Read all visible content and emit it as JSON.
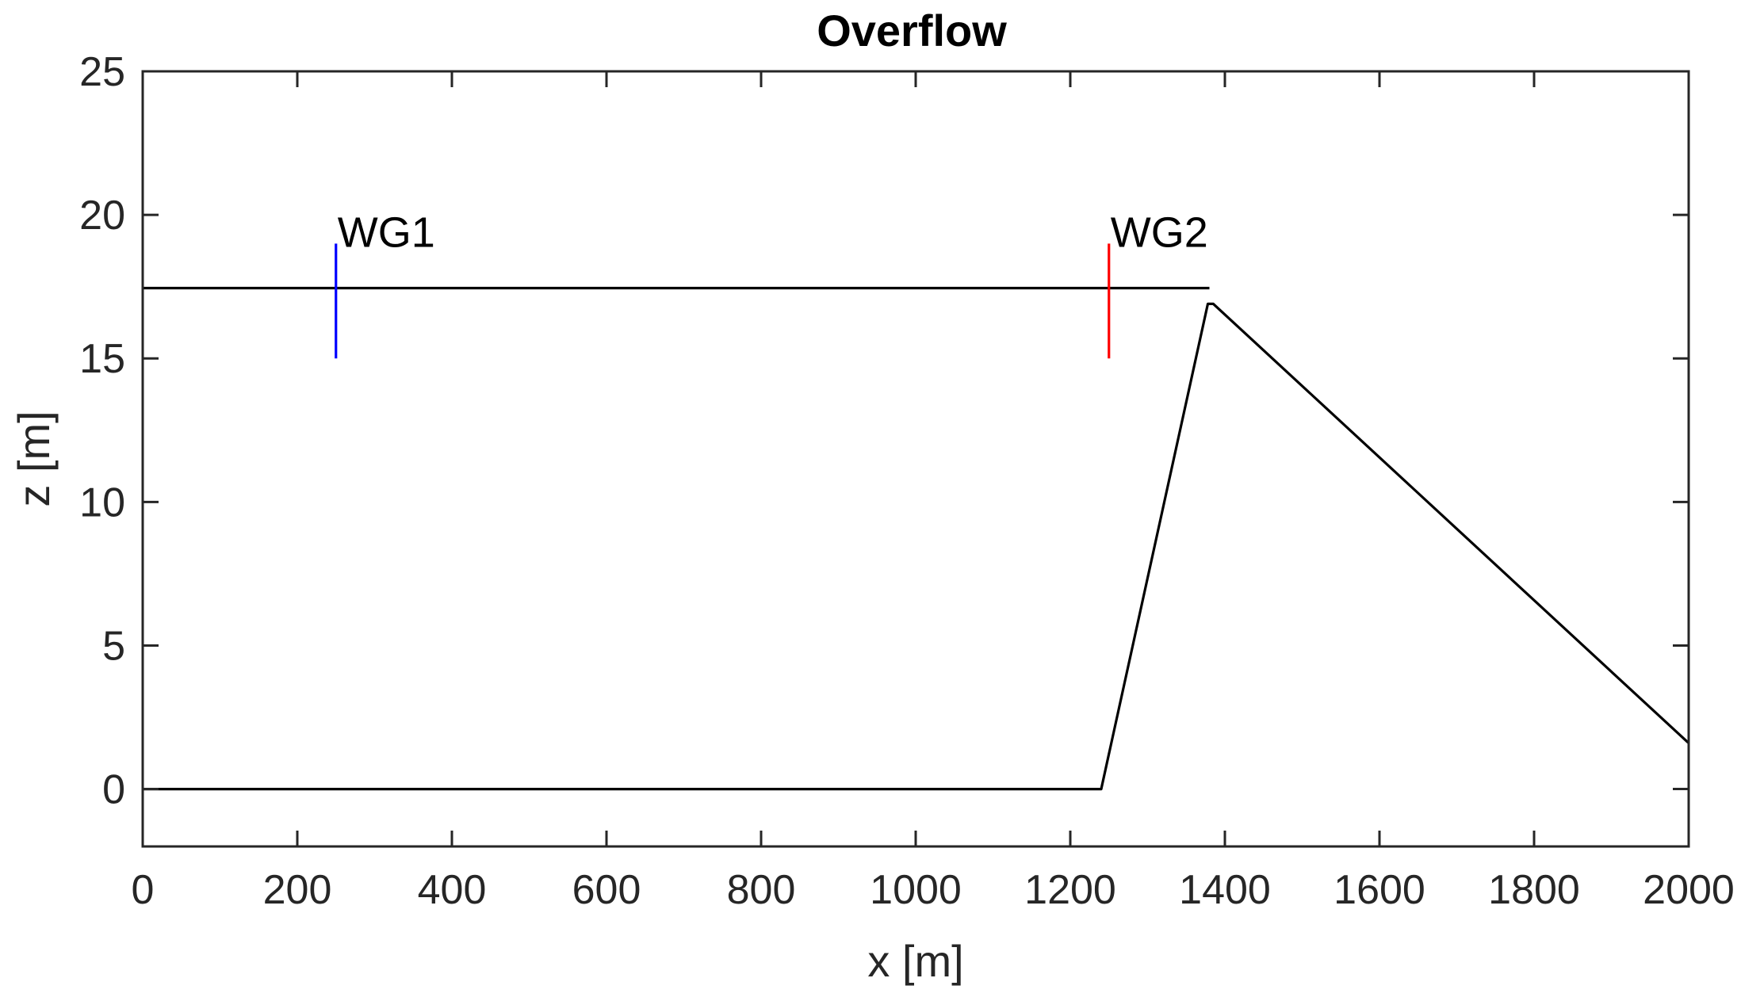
{
  "chart_data": {
    "type": "line",
    "title": "Overflow",
    "xlabel": "x [m]",
    "ylabel": "z [m]",
    "xlim": [
      0,
      2000
    ],
    "ylim": [
      -2,
      25
    ],
    "xticks": [
      0,
      200,
      400,
      600,
      800,
      1000,
      1200,
      1400,
      1600,
      1800,
      2000
    ],
    "yticks": [
      0,
      5,
      10,
      15,
      20,
      25
    ],
    "grid": false,
    "series": [
      {
        "role": "bathymetry",
        "color": "#000000",
        "x": [
          0,
          1240,
          1378,
          1385,
          2000
        ],
        "y": [
          0,
          0,
          16.9,
          16.9,
          1.6
        ]
      },
      {
        "role": "still water level",
        "color": "#000000",
        "x": [
          0,
          1380
        ],
        "y": [
          17.45,
          17.45
        ]
      }
    ],
    "annotations": [
      {
        "text": "WG1",
        "x": 250,
        "y_from": 15,
        "y_to": 19,
        "color": "#0000ff"
      },
      {
        "text": "WG2",
        "x": 1250,
        "y_from": 15,
        "y_to": 19,
        "color": "#ff0000"
      }
    ]
  }
}
